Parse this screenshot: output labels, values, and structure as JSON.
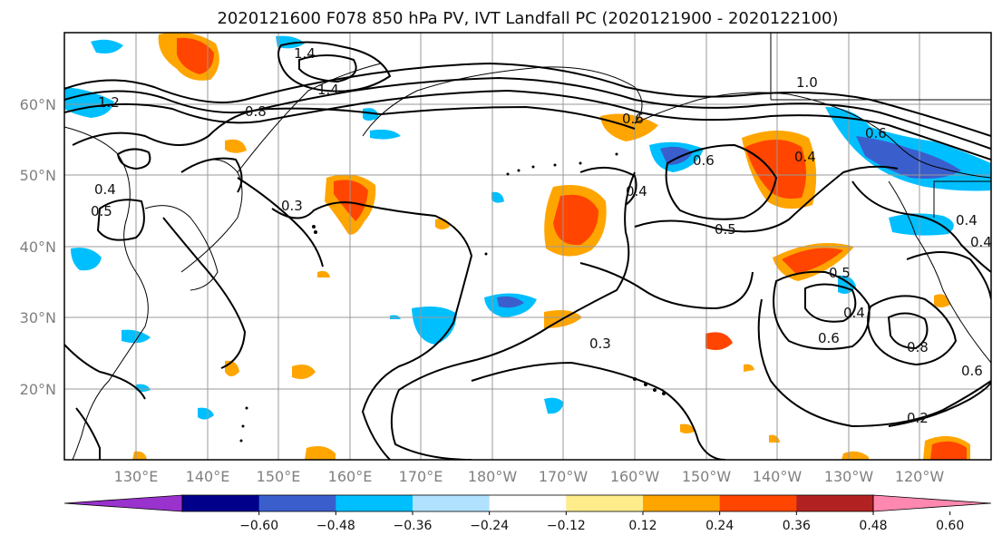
{
  "title": "2020121600 F078 850 hPa PV, IVT Landfall PC (2020121900 - 2020122100)",
  "map": {
    "lat_labels": [
      "60°N",
      "50°N",
      "40°N",
      "30°N",
      "20°N"
    ],
    "lon_labels": [
      "130°E",
      "140°E",
      "150°E",
      "160°E",
      "170°E",
      "180°W",
      "170°W",
      "160°W",
      "150°W",
      "140°W",
      "130°W",
      "120°W"
    ],
    "contour_labels": [
      "1.2",
      "1.4",
      "1.4",
      "1.0",
      "0.8",
      "0.6",
      "0.5",
      "0.4",
      "0.3",
      "0.4",
      "0.6",
      "0.4",
      "0.5",
      "0.6",
      "0.5",
      "0.4",
      "0.6",
      "0.8",
      "0.6",
      "0.3",
      "0.2",
      "0.4",
      "0.4"
    ]
  },
  "colorbar": {
    "tick_labels": [
      "−0.60",
      "−0.48",
      "−0.36",
      "−0.24",
      "−0.12",
      "0.12",
      "0.24",
      "0.36",
      "0.48",
      "0.60"
    ],
    "colors": [
      "#9a32cd",
      "#00008b",
      "#3a5fcd",
      "#00bfff",
      "#b0e2ff",
      "#ffffff",
      "#ffec8b",
      "#ffa500",
      "#ff4500",
      "#b22222",
      "#ff88b0"
    ]
  }
}
